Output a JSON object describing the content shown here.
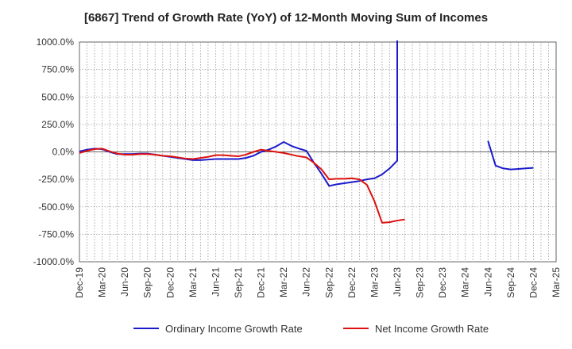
{
  "chart_data": {
    "type": "line",
    "title": "[6867]  Trend of Growth Rate (YoY) of 12-Month Moving Sum of Incomes",
    "xlabel": "",
    "ylabel": "",
    "ylim": [
      -1000,
      1000
    ],
    "yticks": [
      "1000.0%",
      "750.0%",
      "500.0%",
      "250.0%",
      "0.0%",
      "-250.0%",
      "-500.0%",
      "-750.0%",
      "-1000.0%"
    ],
    "xticks": [
      "Dec-19",
      "Mar-20",
      "Jun-20",
      "Sep-20",
      "Dec-20",
      "Mar-21",
      "Jun-21",
      "Sep-21",
      "Dec-21",
      "Mar-22",
      "Jun-22",
      "Sep-22",
      "Dec-22",
      "Mar-23",
      "Jun-23",
      "Sep-23",
      "Dec-23",
      "Mar-24",
      "Jun-24",
      "Sep-24",
      "Dec-24",
      "Mar-25"
    ],
    "grid": true,
    "legend_position": "bottom",
    "x": [
      "Dec-19",
      "Jan-20",
      "Feb-20",
      "Mar-20",
      "Apr-20",
      "May-20",
      "Jun-20",
      "Jul-20",
      "Aug-20",
      "Sep-20",
      "Oct-20",
      "Nov-20",
      "Dec-20",
      "Jan-21",
      "Feb-21",
      "Mar-21",
      "Apr-21",
      "May-21",
      "Jun-21",
      "Jul-21",
      "Aug-21",
      "Sep-21",
      "Oct-21",
      "Nov-21",
      "Dec-21",
      "Jan-22",
      "Feb-22",
      "Mar-22",
      "Apr-22",
      "May-22",
      "Jun-22",
      "Jul-22",
      "Aug-22",
      "Sep-22",
      "Oct-22",
      "Nov-22",
      "Dec-22",
      "Jan-23",
      "Feb-23",
      "Mar-23",
      "Apr-23",
      "May-23",
      "Jun-23",
      "Jul-23",
      "Aug-23",
      "Sep-23",
      "Oct-23",
      "Nov-23",
      "Dec-23",
      "Jan-24",
      "Feb-24",
      "Mar-24",
      "Apr-24",
      "May-24",
      "Jun-24",
      "Jul-24",
      "Aug-24",
      "Sep-24",
      "Oct-24",
      "Nov-24",
      "Dec-24",
      "Jan-25",
      "Feb-25",
      "Mar-25"
    ],
    "series": [
      {
        "name": "Ordinary Income Growth Rate",
        "color": "#1a1acc",
        "values": [
          5,
          20,
          30,
          25,
          0,
          -20,
          -20,
          -20,
          -15,
          -15,
          -25,
          -35,
          -45,
          -55,
          -65,
          -75,
          -75,
          -70,
          -65,
          -65,
          -65,
          -65,
          -55,
          -35,
          0,
          20,
          50,
          90,
          55,
          30,
          10,
          -100,
          -200,
          -310,
          -295,
          -285,
          -275,
          -265,
          -250,
          -240,
          -205,
          -150,
          -80,
          null,
          null,
          null,
          null,
          null,
          null,
          null,
          null,
          null,
          null,
          null,
          100,
          -125,
          -150,
          -160,
          -155,
          -150,
          -145,
          null,
          null,
          null
        ],
        "spike_to_top_after_index": 42
      },
      {
        "name": "Net Income Growth Rate",
        "color": "#dd1111",
        "values": [
          -10,
          10,
          25,
          30,
          5,
          -15,
          -25,
          -25,
          -20,
          -20,
          -25,
          -35,
          -40,
          -50,
          -60,
          -65,
          -55,
          -45,
          -30,
          -30,
          -35,
          -40,
          -25,
          0,
          20,
          10,
          0,
          -10,
          -25,
          -40,
          -50,
          -100,
          -160,
          -250,
          -245,
          -245,
          -240,
          -250,
          -300,
          -450,
          -645,
          -640,
          -625,
          -615,
          null,
          null,
          null,
          null,
          null,
          null,
          null,
          null,
          null,
          null,
          null,
          null,
          null,
          null,
          null,
          null,
          null,
          null,
          null,
          null
        ]
      }
    ]
  }
}
